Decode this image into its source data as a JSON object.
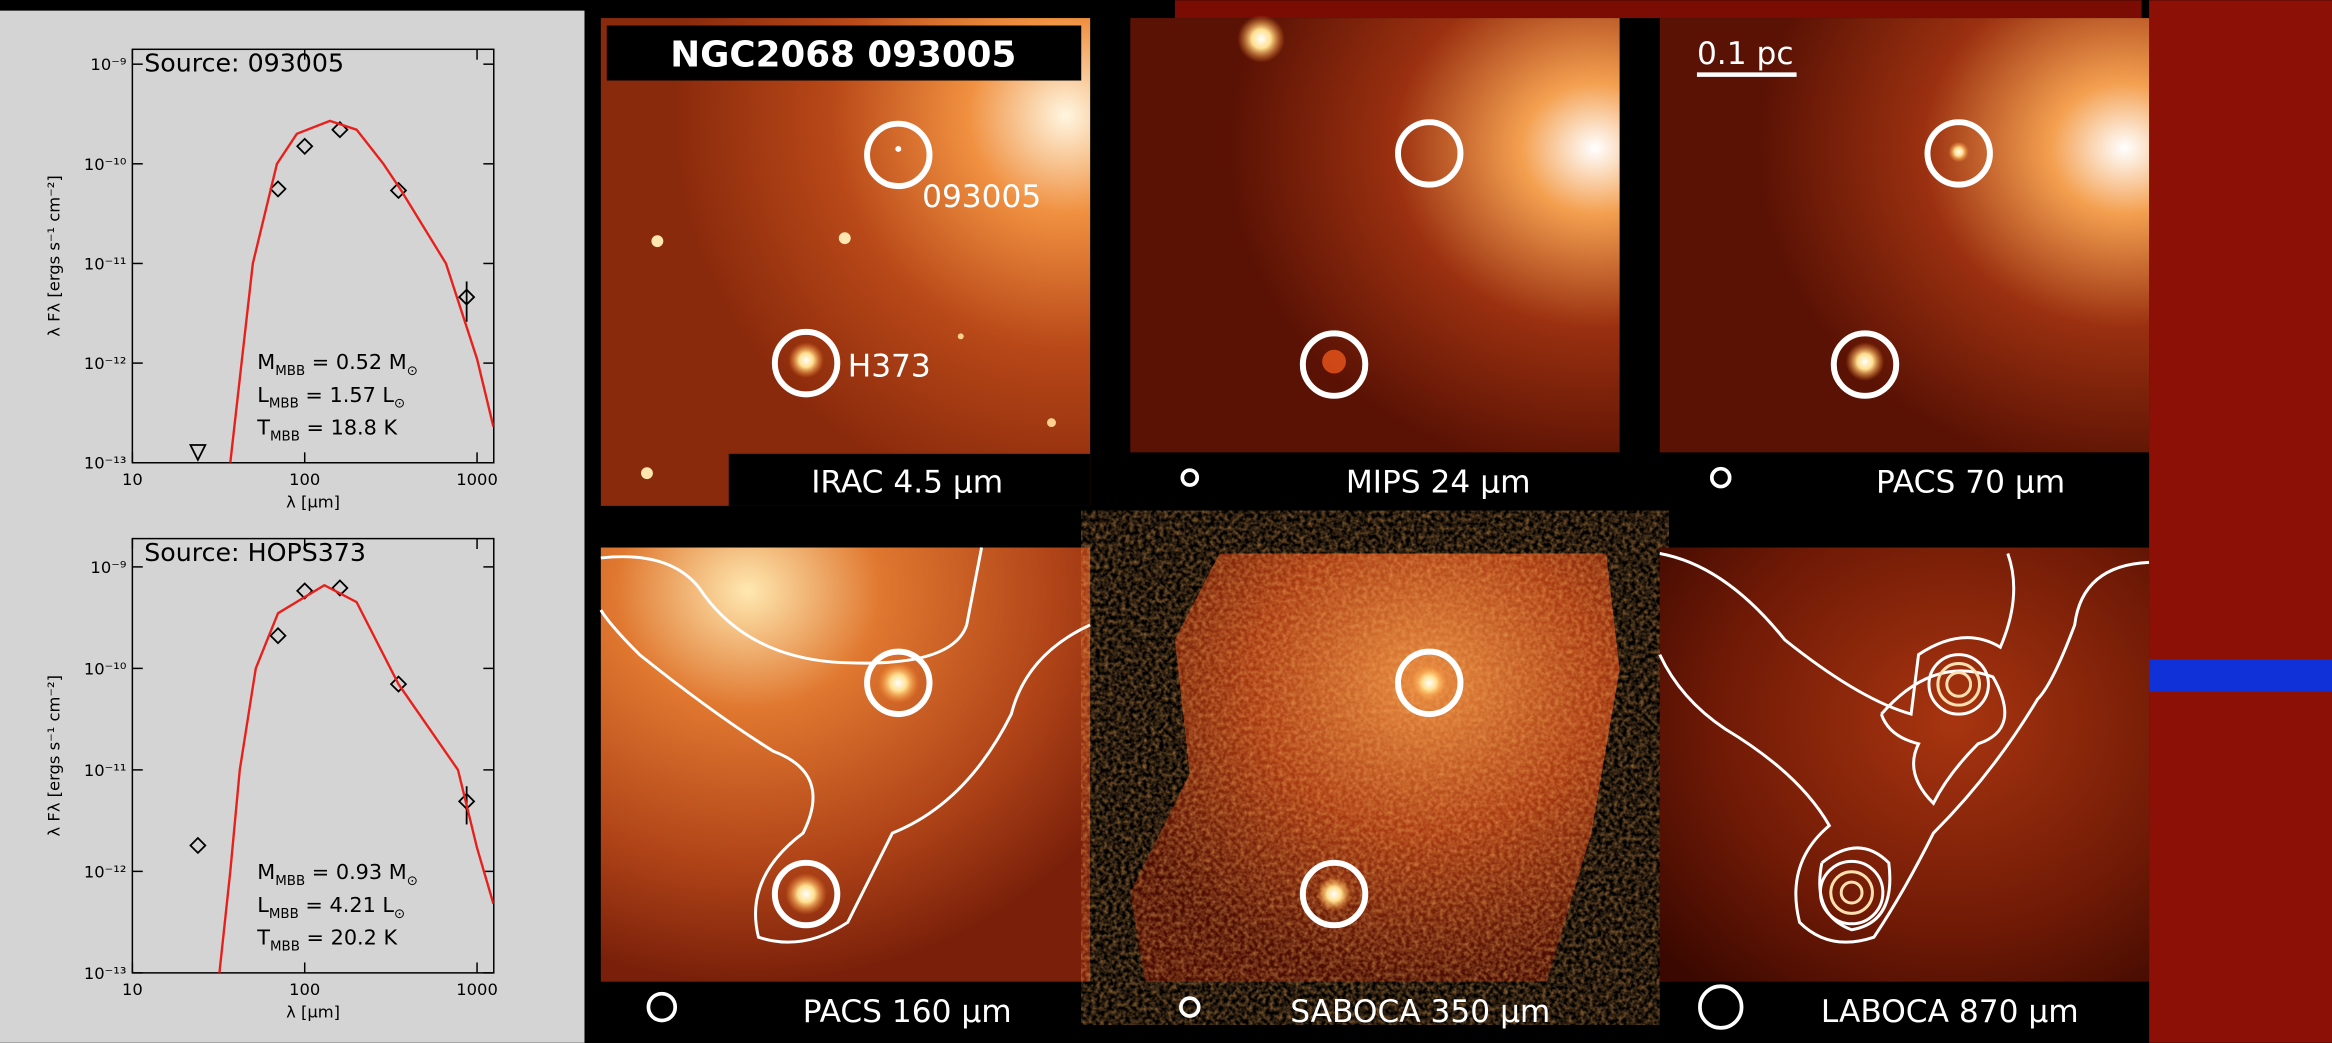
{
  "chart_data": [
    {
      "type": "scatter",
      "title": "Source: 093005",
      "xlabel": "λ [μm]",
      "ylabel": "λ Fλ [ergs s⁻¹ cm⁻²]",
      "xscale": "log",
      "yscale": "log",
      "xlim": [
        10,
        1250
      ],
      "ylim": [
        1e-13,
        1.41e-09
      ],
      "xticks": [
        10,
        100,
        1000
      ],
      "yticks": [
        {
          "value": 1e-13,
          "label": "10⁻¹³"
        },
        {
          "value": 1e-12,
          "label": "10⁻¹²"
        },
        {
          "value": 1e-11,
          "label": "10⁻¹¹"
        },
        {
          "value": 1e-10,
          "label": "10⁻¹⁰"
        },
        {
          "value": 1e-09,
          "label": "10⁻⁹"
        }
      ],
      "series": [
        {
          "marker": "triangle-down",
          "color": "#000000",
          "x": [
            24
          ],
          "values": [
            1.27e-13
          ]
        },
        {
          "marker": "diamond",
          "color": "#000000",
          "x": [
            70,
            100,
            160,
            350,
            870
          ],
          "values": [
            5.6e-11,
            1.5e-10,
            2.2e-10,
            5.4e-11,
            4.6e-12
          ],
          "errors": [
            null,
            null,
            null,
            null,
            2e-12
          ]
        },
        {
          "marker": "line",
          "color": "#e8201c",
          "x": [
            37,
            43,
            50,
            69,
            90,
            140,
            200,
            286,
            363,
            660,
            1000,
            1244
          ],
          "values": [
            1e-13,
            1e-12,
            1e-11,
            1e-10,
            2e-10,
            2.7e-10,
            2.2e-10,
            1e-10,
            5.4e-11,
            1e-11,
            1.1e-12,
            2.3e-13
          ]
        }
      ],
      "annotations": [
        {
          "symbol": "M",
          "sub": "MBB",
          "text": " = 0.52 M",
          "unit_sub": "⊙"
        },
        {
          "symbol": "L",
          "sub": "MBB",
          "text": " = 1.57 L",
          "unit_sub": "⊙"
        },
        {
          "symbol": "T",
          "sub": "MBB",
          "text": " = 18.8 K"
        }
      ]
    },
    {
      "type": "scatter",
      "title": "Source: HOPS373",
      "xlabel": "λ [μm]",
      "ylabel": "λ Fλ [ergs s⁻¹ cm⁻²]",
      "xscale": "log",
      "yscale": "log",
      "xlim": [
        10,
        1250
      ],
      "ylim": [
        1e-13,
        1.9e-09
      ],
      "xticks": [
        10,
        100,
        1000
      ],
      "yticks": [
        {
          "value": 1e-13,
          "label": "10⁻¹³"
        },
        {
          "value": 1e-12,
          "label": "10⁻¹²"
        },
        {
          "value": 1e-11,
          "label": "10⁻¹¹"
        },
        {
          "value": 1e-10,
          "label": "10⁻¹⁰"
        },
        {
          "value": 1e-09,
          "label": "10⁻⁹"
        }
      ],
      "series": [
        {
          "marker": "diamond",
          "color": "#000000",
          "x": [
            24,
            70,
            100,
            160,
            350,
            870
          ],
          "values": [
            1.8e-12,
            2.1e-10,
            5.8e-10,
            6.2e-10,
            7e-11,
            4.9e-12
          ],
          "errors": [
            null,
            null,
            null,
            null,
            null,
            2e-12
          ]
        },
        {
          "marker": "line",
          "color": "#e8201c",
          "x": [
            32,
            37,
            42,
            52,
            70,
            130,
            200,
            350,
            775,
            1000,
            1244
          ],
          "values": [
            1e-13,
            1e-12,
            1e-11,
            1e-10,
            3.5e-10,
            6.6e-10,
            4.5e-10,
            7e-11,
            1e-11,
            1.7e-12,
            4.8e-13
          ]
        }
      ],
      "annotations": [
        {
          "symbol": "M",
          "sub": "MBB",
          "text": " = 0.93 M",
          "unit_sub": "⊙"
        },
        {
          "symbol": "L",
          "sub": "MBB",
          "text": " = 4.21 L",
          "unit_sub": "⊙"
        },
        {
          "symbol": "T",
          "sub": "MBB",
          "text": " = 20.2 K"
        }
      ]
    }
  ],
  "header": "NGC2068 093005",
  "sources": [
    "093005",
    "H373"
  ],
  "scalebar": "0.1 pc",
  "panels": [
    {
      "label": "IRAC 4.5 μm"
    },
    {
      "label": "MIPS 24 μm"
    },
    {
      "label": "PACS 70 μm"
    },
    {
      "label": "PACS 160 μm"
    },
    {
      "label": "SABOCA 350 μm"
    },
    {
      "label": "LABOCA 870 μm"
    }
  ]
}
